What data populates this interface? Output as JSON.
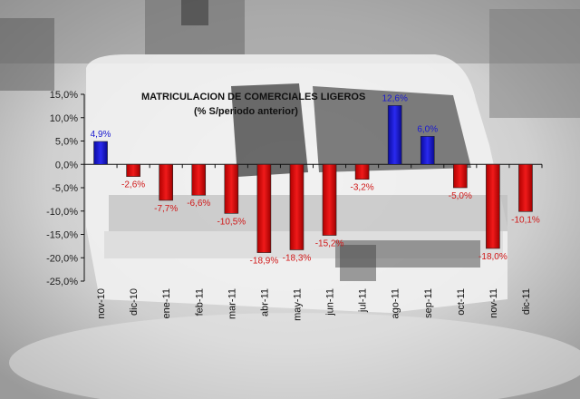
{
  "chart_data": {
    "type": "bar",
    "title": "MATRICULACION DE COMERCIALES LIGEROS",
    "subtitle": "(% S/periodo anterior)",
    "xlabel": "",
    "ylabel": "",
    "categories": [
      "nov-10",
      "dic-10",
      "ene-11",
      "feb-11",
      "mar-11",
      "abr-11",
      "may-11",
      "jun-11",
      "jul-11",
      "ago-11",
      "sep-11",
      "oct-11",
      "nov-11",
      "dic-11"
    ],
    "values": [
      4.9,
      -2.6,
      -7.7,
      -6.6,
      -10.5,
      -18.9,
      -18.3,
      -15.2,
      -3.2,
      12.6,
      6.0,
      -5.0,
      -18.0,
      -10.1
    ],
    "value_labels": [
      "4,9%",
      "-2,6%",
      "-7,7%",
      "-6,6%",
      "-10,5%",
      "-18,9%",
      "-18,3%",
      "-15,2%",
      "-3,2%",
      "12,6%",
      "6,0%",
      "-5,0%",
      "-18,0%",
      "-10,1%"
    ],
    "y_ticks": [
      15,
      10,
      5,
      0,
      -5,
      -10,
      -15,
      -20,
      -25
    ],
    "y_tick_labels": [
      "15,0%",
      "10,0%",
      "5,0%",
      "0,0%",
      "-5,0%",
      "-10,0%",
      "-15,0%",
      "-20,0%",
      "-25,0%"
    ],
    "ylim": [
      -25,
      15
    ],
    "grid": false,
    "legend": "none",
    "colors": {
      "positive": "#1010c8",
      "negative": "#e01010",
      "positive_label": "#1a1ad0",
      "negative_label": "#d01818",
      "axis": "#111111"
    }
  }
}
